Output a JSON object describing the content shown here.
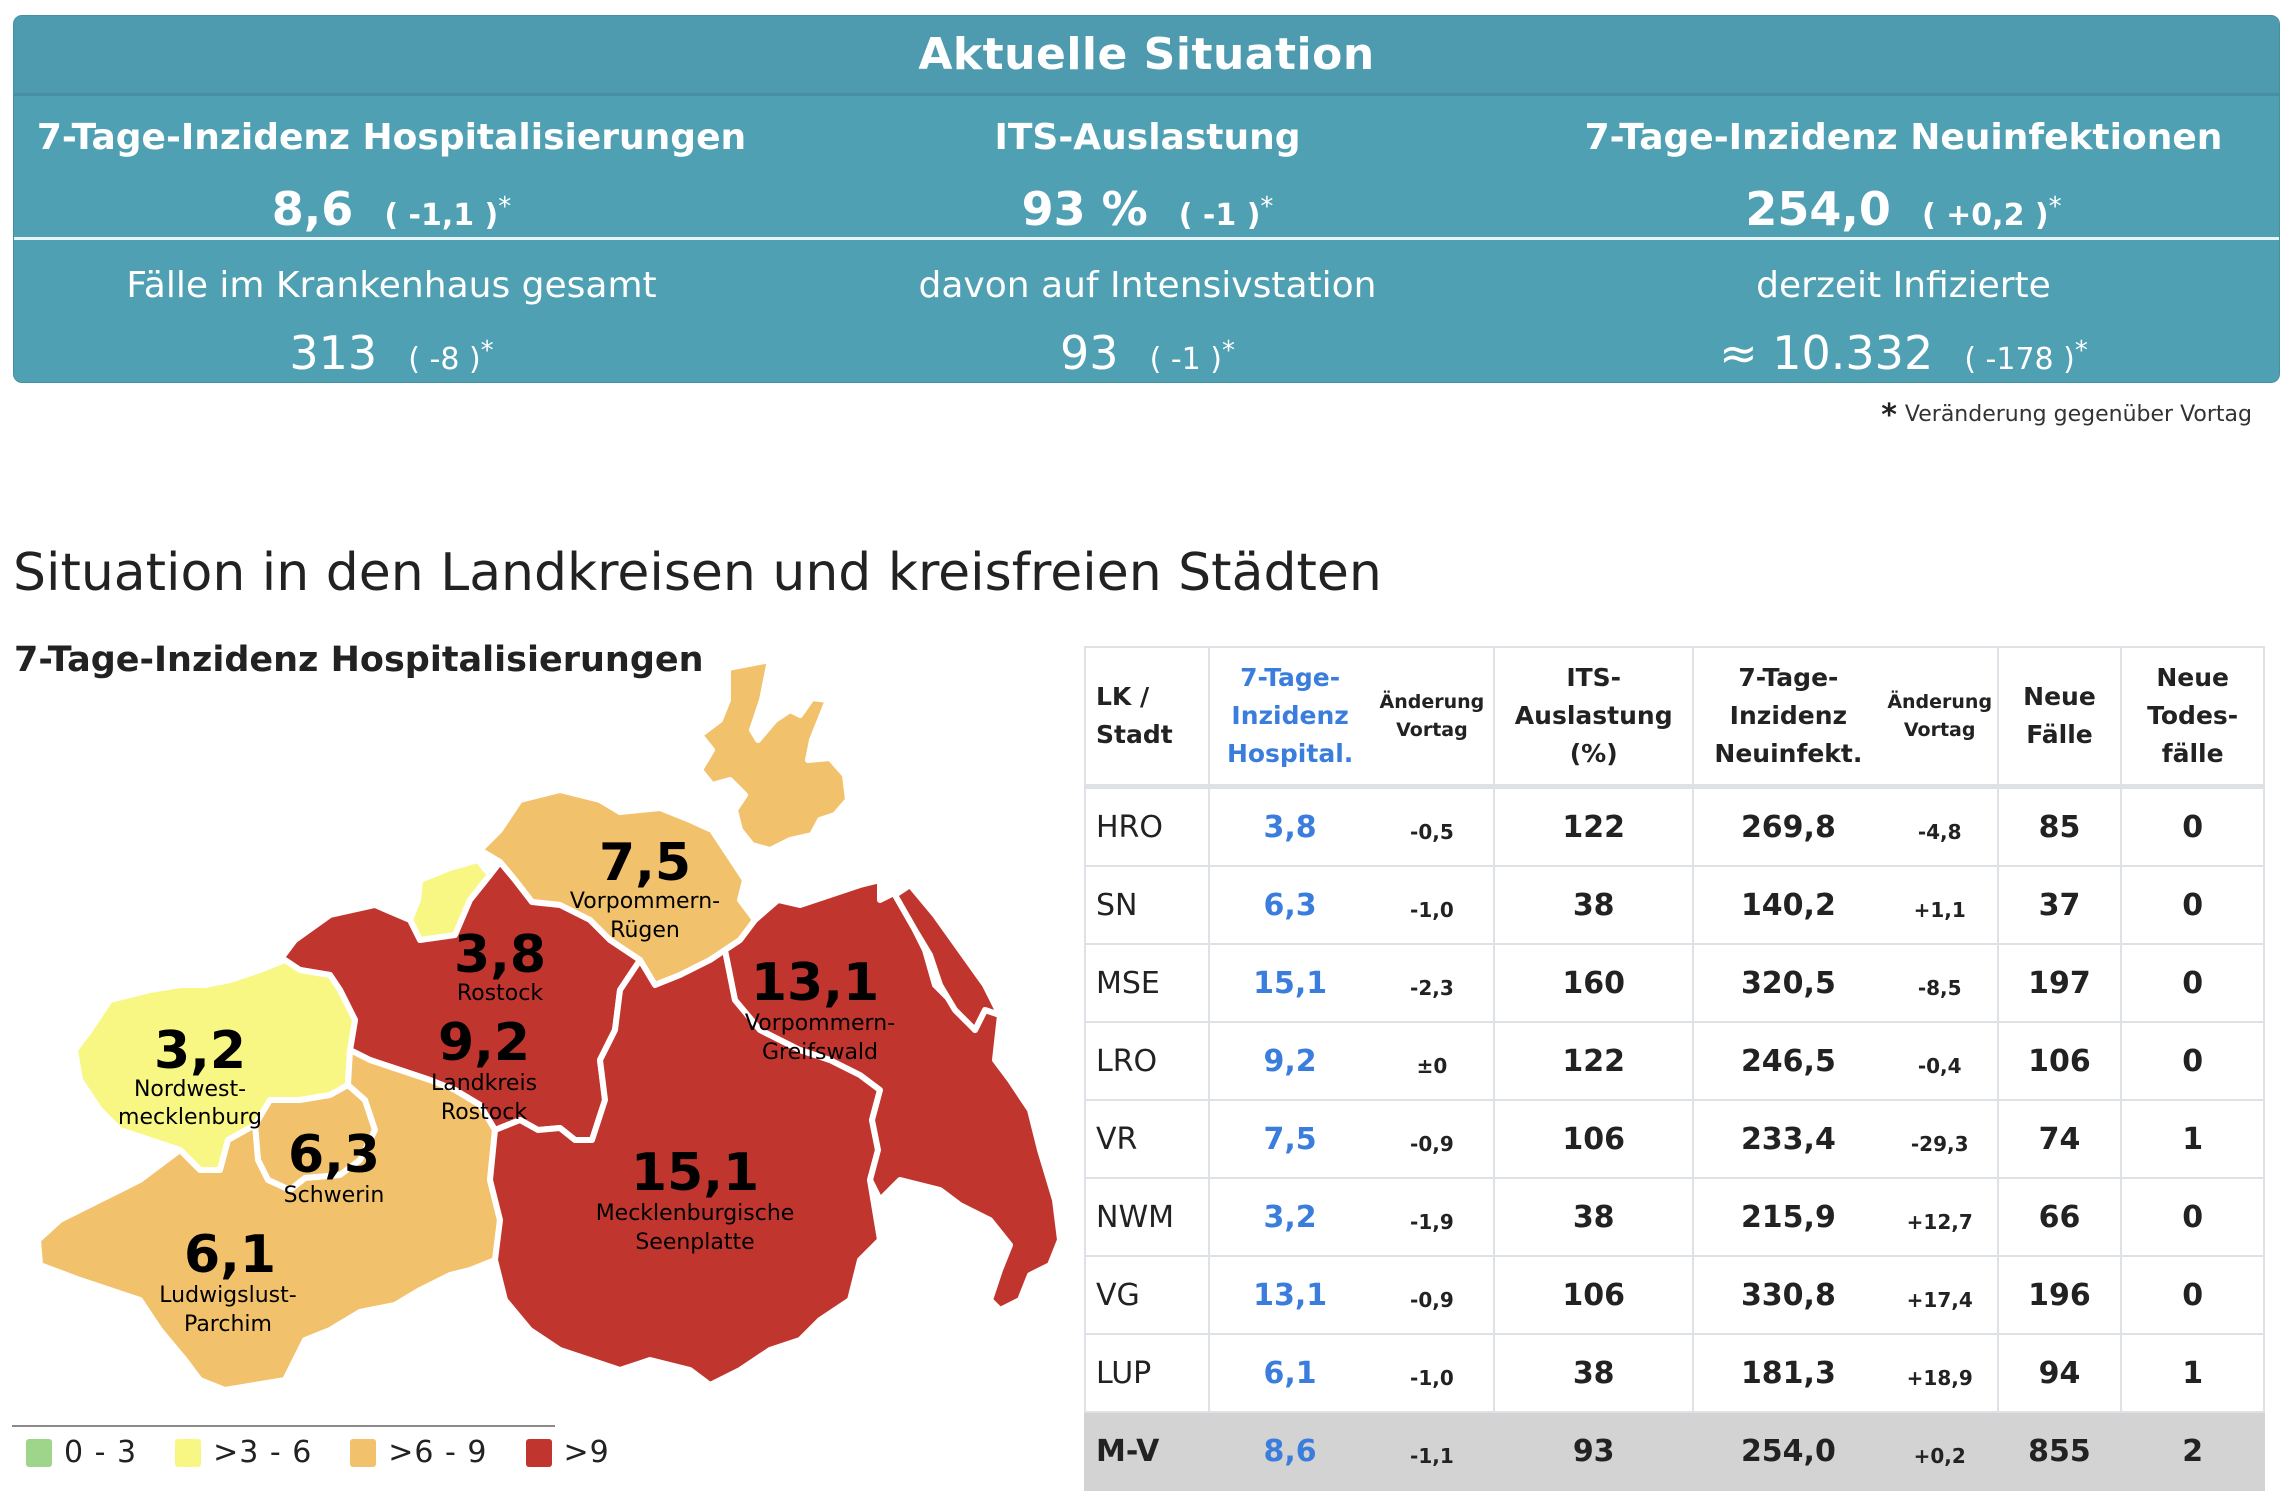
{
  "summary": {
    "title": "Aktuelle Situation",
    "kpis": [
      {
        "label": "7-Tage-Inzidenz Hospitalisierungen",
        "value": "8,6",
        "delta": "( -1,1 )",
        "star": "*"
      },
      {
        "label": "ITS-Auslastung",
        "value": "93 %",
        "delta": "( -1 )",
        "star": "*"
      },
      {
        "label": "7-Tage-Inzidenz Neuinfektionen",
        "value": "254,0",
        "delta": "( +0,2 )",
        "star": "*"
      }
    ],
    "stats": [
      {
        "label": "Fälle im Krankenhaus gesamt",
        "value": "313",
        "delta": "( -8 )",
        "star": "*"
      },
      {
        "label": "davon auf Intensivstation",
        "value": "93",
        "delta": "( -1 )",
        "star": "*"
      },
      {
        "label": "derzeit Infizierte",
        "value": "≈ 10.332",
        "delta": "( -178 )",
        "star": "*"
      }
    ],
    "footnote_star": "*",
    "footnote": "Veränderung gegenüber Vortag",
    "colors": {
      "panel": "#50A0B4",
      "panel_header": "#4E9BAF"
    }
  },
  "section_title": "Situation in den Landkreisen und kreisfreien Städten",
  "map": {
    "title": "7-Tage-Inzidenz Hospitalisierungen",
    "regions": [
      {
        "code": "NWM",
        "name_lines": [
          "Nordwest-",
          "mecklenburg"
        ],
        "value": "3,2",
        "class": ">3 - 6",
        "color": "#F9F784"
      },
      {
        "code": "HRO",
        "name_lines": [
          "Rostock"
        ],
        "value": "3,8",
        "class": ">3 - 6",
        "color": "#F9F784"
      },
      {
        "code": "LRO",
        "name_lines": [
          "Landkreis",
          "Rostock"
        ],
        "value": "9,2",
        "class": ">9",
        "color": "#C1352F"
      },
      {
        "code": "VR",
        "name_lines": [
          "Vorpommern-",
          "Rügen"
        ],
        "value": "7,5",
        "class": ">6 - 9",
        "color": "#F2C16B"
      },
      {
        "code": "VG",
        "name_lines": [
          "Vorpommern-",
          "Greifswald"
        ],
        "value": "13,1",
        "class": ">9",
        "color": "#C1352F"
      },
      {
        "code": "SN",
        "name_lines": [
          "Schwerin"
        ],
        "value": "6,3",
        "class": ">6 - 9",
        "color": "#F2C16B"
      },
      {
        "code": "LUP",
        "name_lines": [
          "Ludwigslust-",
          "Parchim"
        ],
        "value": "6,1",
        "class": ">6 - 9",
        "color": "#F2C16B"
      },
      {
        "code": "MSE",
        "name_lines": [
          "Mecklenburgische",
          "Seenplatte"
        ],
        "value": "15,1",
        "class": ">9",
        "color": "#C1352F"
      }
    ],
    "legend": [
      {
        "label": "0 - 3",
        "color": "#9ED58B"
      },
      {
        "label": ">3 - 6",
        "color": "#F9F784"
      },
      {
        "label": ">6 - 9",
        "color": "#F2C16B"
      },
      {
        "label": ">9",
        "color": "#C1352F"
      }
    ]
  },
  "table": {
    "headers": {
      "lk": "LK / Stadt",
      "hosp": "7-Tage- Inzidenz Hospital.",
      "hosp_change": "Änderung Vortag",
      "its": "ITS- Auslastung (%)",
      "neu": "7-Tage- Inzidenz Neuinfekt.",
      "neu_change": "Änderung Vortag",
      "faelle": "Neue Fälle",
      "tode": "Neue Todes- fälle"
    },
    "header_lines": {
      "lk": [
        "LK /",
        "Stadt"
      ],
      "hosp": [
        "7-Tage-",
        "Inzidenz",
        "Hospital."
      ],
      "hosp_change": [
        "Änderung",
        "Vortag"
      ],
      "its": [
        "ITS-",
        "Auslastung",
        "(%)"
      ],
      "neu": [
        "7-Tage-",
        "Inzidenz",
        "Neuinfekt."
      ],
      "neu_change": [
        "Änderung",
        "Vortag"
      ],
      "faelle": [
        "Neue",
        "Fälle"
      ],
      "tode": [
        "Neue",
        "Todes-",
        "fälle"
      ]
    },
    "rows": [
      {
        "lk": "HRO",
        "hosp": "3,8",
        "hosp_change": "-0,5",
        "its": "122",
        "neu": "269,8",
        "neu_change": "-4,8",
        "faelle": "85",
        "tode": "0"
      },
      {
        "lk": "SN",
        "hosp": "6,3",
        "hosp_change": "-1,0",
        "its": "38",
        "neu": "140,2",
        "neu_change": "+1,1",
        "faelle": "37",
        "tode": "0"
      },
      {
        "lk": "MSE",
        "hosp": "15,1",
        "hosp_change": "-2,3",
        "its": "160",
        "neu": "320,5",
        "neu_change": "-8,5",
        "faelle": "197",
        "tode": "0"
      },
      {
        "lk": "LRO",
        "hosp": "9,2",
        "hosp_change": "±0",
        "its": "122",
        "neu": "246,5",
        "neu_change": "-0,4",
        "faelle": "106",
        "tode": "0"
      },
      {
        "lk": "VR",
        "hosp": "7,5",
        "hosp_change": "-0,9",
        "its": "106",
        "neu": "233,4",
        "neu_change": "-29,3",
        "faelle": "74",
        "tode": "1"
      },
      {
        "lk": "NWM",
        "hosp": "3,2",
        "hosp_change": "-1,9",
        "its": "38",
        "neu": "215,9",
        "neu_change": "+12,7",
        "faelle": "66",
        "tode": "0"
      },
      {
        "lk": "VG",
        "hosp": "13,1",
        "hosp_change": "-0,9",
        "its": "106",
        "neu": "330,8",
        "neu_change": "+17,4",
        "faelle": "196",
        "tode": "0"
      },
      {
        "lk": "LUP",
        "hosp": "6,1",
        "hosp_change": "-1,0",
        "its": "38",
        "neu": "181,3",
        "neu_change": "+18,9",
        "faelle": "94",
        "tode": "1"
      }
    ],
    "total": {
      "lk": "M-V",
      "hosp": "8,6",
      "hosp_change": "-1,1",
      "its": "93",
      "neu": "254,0",
      "neu_change": "+0,2",
      "faelle": "855",
      "tode": "2"
    },
    "colors": {
      "highlight_text": "#3B7DDD",
      "total_row_bg": "#D3D3D3"
    }
  }
}
